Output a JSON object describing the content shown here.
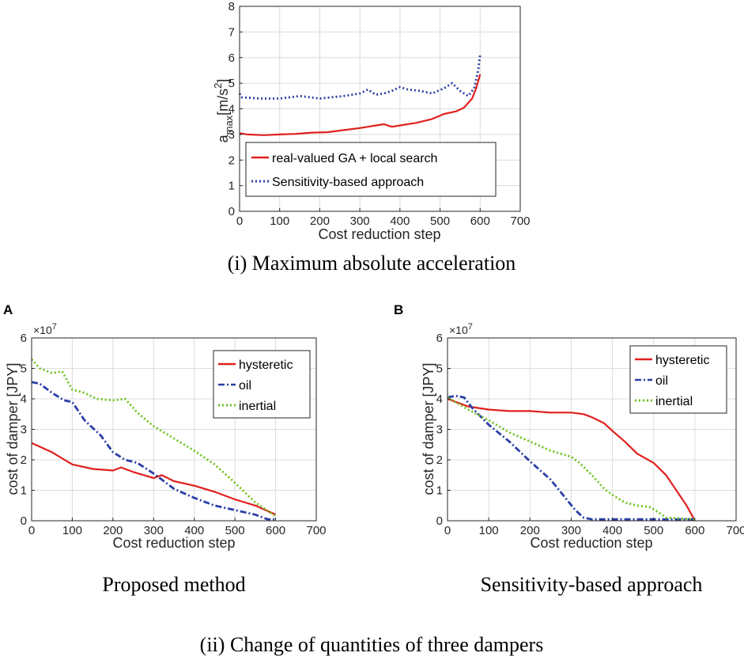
{
  "figure": {
    "caption_i": "(i) Maximum absolute acceleration",
    "caption_ii": "(ii) Change of quantities of three dampers",
    "caption_A": "Proposed method",
    "caption_B": "Sensitivity-based approach",
    "letter_A": "A",
    "letter_B": "B"
  },
  "colors": {
    "hysteretic": "#e0201e",
    "oil": "#2b3fa6",
    "inertial": "#6cc21c",
    "frame": "#262626",
    "grid": "#dcdcdc"
  },
  "chart_data": [
    {
      "type": "line",
      "title": "",
      "xlabel": "Cost reduction step",
      "ylabel_main": "a",
      "ylabel_sub": "max",
      "ylabel_unit": "[m/s",
      "ylabel_sup": "2",
      "ylabel_close": "]",
      "xlim": [
        0,
        700
      ],
      "ylim": [
        0,
        8
      ],
      "xticks": [
        "0",
        "100",
        "200",
        "300",
        "400",
        "500",
        "600",
        "700"
      ],
      "yticks": [
        "0",
        "1",
        "2",
        "3",
        "4",
        "5",
        "6",
        "7",
        "8"
      ],
      "grid": true,
      "legend": "bottom-left",
      "series": [
        {
          "name": "real-valued GA + local search",
          "style": "solid",
          "color": "#e0201e",
          "x": [
            0,
            20,
            60,
            100,
            140,
            180,
            220,
            260,
            300,
            320,
            340,
            360,
            380,
            400,
            440,
            480,
            510,
            540,
            560,
            580,
            590,
            600
          ],
          "y": [
            3.05,
            3.0,
            2.97,
            3.0,
            3.02,
            3.07,
            3.09,
            3.17,
            3.25,
            3.3,
            3.35,
            3.4,
            3.3,
            3.35,
            3.45,
            3.6,
            3.8,
            3.9,
            4.05,
            4.4,
            4.8,
            5.35
          ]
        },
        {
          "name": "Sensitivity-based approach",
          "style": "dotted",
          "color": "#2b3fa6",
          "x": [
            0,
            5,
            50,
            100,
            150,
            200,
            260,
            300,
            320,
            340,
            360,
            380,
            400,
            420,
            450,
            480,
            510,
            530,
            550,
            570,
            585,
            595,
            600
          ],
          "y": [
            4.6,
            4.45,
            4.4,
            4.4,
            4.5,
            4.4,
            4.5,
            4.6,
            4.75,
            4.55,
            4.6,
            4.7,
            4.85,
            4.75,
            4.7,
            4.6,
            4.8,
            5.0,
            4.7,
            4.5,
            4.8,
            5.5,
            6.1
          ]
        }
      ]
    },
    {
      "type": "line",
      "panel": "A",
      "exponent_label": "×10",
      "exponent_power": "7",
      "xlabel": "Cost reduction step",
      "ylabel": "cost of damper [JPY]",
      "xlim": [
        0,
        700
      ],
      "ylim": [
        0,
        6
      ],
      "xticks": [
        "0",
        "100",
        "200",
        "300",
        "400",
        "500",
        "600",
        "700"
      ],
      "yticks": [
        "0",
        "1",
        "2",
        "3",
        "4",
        "5",
        "6"
      ],
      "grid": true,
      "legend": "top-right",
      "series": [
        {
          "name": "hysteretic",
          "style": "solid",
          "color": "#e0201e",
          "x": [
            0,
            25,
            50,
            100,
            150,
            200,
            220,
            250,
            300,
            320,
            350,
            400,
            450,
            500,
            550,
            600
          ],
          "y": [
            2.55,
            2.4,
            2.25,
            1.85,
            1.7,
            1.65,
            1.75,
            1.6,
            1.4,
            1.5,
            1.3,
            1.15,
            0.95,
            0.7,
            0.5,
            0.2
          ]
        },
        {
          "name": "oil",
          "style": "dashdot",
          "color": "#2b3fa6",
          "x": [
            0,
            20,
            50,
            80,
            100,
            130,
            170,
            200,
            230,
            260,
            300,
            350,
            400,
            450,
            500,
            550,
            580,
            600
          ],
          "y": [
            4.55,
            4.5,
            4.2,
            3.95,
            3.9,
            3.3,
            2.8,
            2.25,
            2.0,
            1.9,
            1.55,
            1.05,
            0.75,
            0.5,
            0.35,
            0.2,
            0.05,
            0.05
          ]
        },
        {
          "name": "inertial",
          "style": "dotted",
          "color": "#6cc21c",
          "x": [
            0,
            20,
            50,
            75,
            100,
            130,
            160,
            200,
            230,
            260,
            300,
            350,
            400,
            450,
            500,
            550,
            600
          ],
          "y": [
            5.3,
            5.0,
            4.85,
            4.9,
            4.3,
            4.2,
            4.0,
            3.95,
            4.0,
            3.55,
            3.1,
            2.7,
            2.3,
            1.85,
            1.25,
            0.6,
            0.15
          ]
        }
      ]
    },
    {
      "type": "line",
      "panel": "B",
      "exponent_label": "×10",
      "exponent_power": "7",
      "xlabel": "Cost reduction step",
      "ylabel": "cost of damper [JPY]",
      "xlim": [
        0,
        700
      ],
      "ylim": [
        0,
        6
      ],
      "xticks": [
        "0",
        "100",
        "200",
        "300",
        "400",
        "500",
        "600",
        "700"
      ],
      "yticks": [
        "0",
        "1",
        "2",
        "3",
        "4",
        "5",
        "6"
      ],
      "grid": true,
      "legend": "top-right",
      "series": [
        {
          "name": "hysteretic",
          "style": "solid",
          "color": "#e0201e",
          "x": [
            0,
            50,
            100,
            150,
            200,
            250,
            300,
            330,
            350,
            380,
            400,
            430,
            460,
            480,
            500,
            530,
            560,
            580,
            600
          ],
          "y": [
            4.0,
            3.75,
            3.65,
            3.6,
            3.6,
            3.55,
            3.55,
            3.5,
            3.4,
            3.2,
            2.95,
            2.6,
            2.2,
            2.05,
            1.9,
            1.5,
            0.9,
            0.5,
            0.0
          ]
        },
        {
          "name": "oil",
          "style": "dashdot",
          "color": "#2b3fa6",
          "x": [
            0,
            20,
            40,
            60,
            100,
            150,
            200,
            250,
            280,
            310,
            330,
            350,
            400,
            500,
            600
          ],
          "y": [
            4.05,
            4.1,
            4.05,
            3.7,
            3.15,
            2.6,
            1.95,
            1.35,
            0.85,
            0.35,
            0.1,
            0.05,
            0.05,
            0.05,
            0.05
          ]
        },
        {
          "name": "inertial",
          "style": "dotted",
          "color": "#6cc21c",
          "x": [
            0,
            25,
            50,
            100,
            150,
            200,
            250,
            300,
            320,
            350,
            380,
            400,
            430,
            460,
            490,
            510,
            520,
            530,
            600
          ],
          "y": [
            4.05,
            3.85,
            3.65,
            3.3,
            2.9,
            2.6,
            2.3,
            2.1,
            1.9,
            1.5,
            1.05,
            0.85,
            0.6,
            0.5,
            0.45,
            0.3,
            0.2,
            0.1,
            0.05
          ]
        }
      ]
    }
  ]
}
